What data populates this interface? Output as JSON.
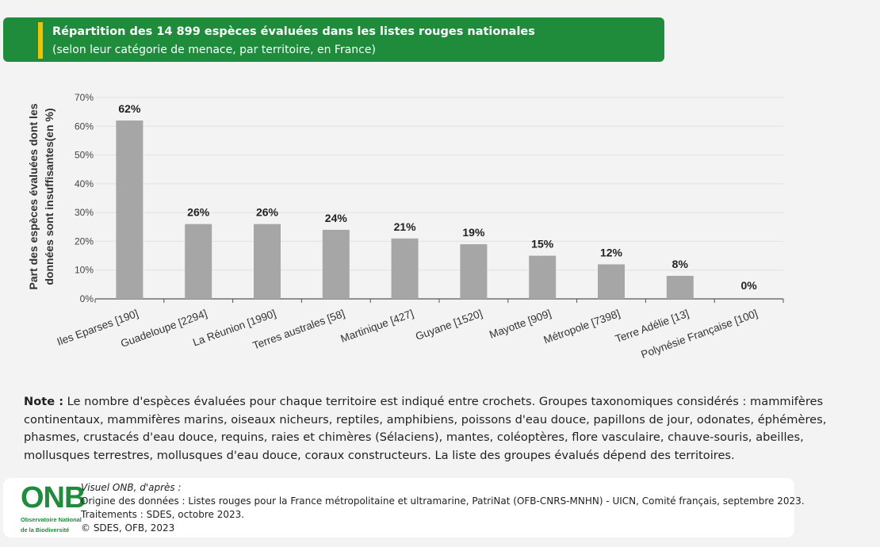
{
  "header": {
    "title": "Répartition des 14 899 espèces évaluées dans les listes rouges nationales",
    "subtitle": "(selon leur catégorie de menace, par territoire, en France)"
  },
  "colors": {
    "header_bg": "#1e8c3a",
    "accent": "#f2c200",
    "bar": "#a6a6a6"
  },
  "chart_data": {
    "type": "bar",
    "categories": [
      "Iles Eparses [190]",
      "Guadeloupe [2294]",
      "La Réunion [1990]",
      "Terres australes [58]",
      "Martinique [427]",
      "Guyane [1520]",
      "Mayotte [909]",
      "Métropole [7398]",
      "Terre Adélie [13]",
      "Polynésie Française [100]"
    ],
    "values": [
      62,
      26,
      26,
      24,
      21,
      19,
      15,
      12,
      8,
      0
    ],
    "data_labels": [
      "62%",
      "26%",
      "26%",
      "24%",
      "21%",
      "19%",
      "15%",
      "12%",
      "8%",
      "0%"
    ],
    "ylabel_line1": "Part des espèces évaluées dont les",
    "ylabel_line2": "données sont insuffisantes(en %)",
    "ylim": [
      0,
      70
    ],
    "yticks": [
      "0%",
      "10%",
      "20%",
      "30%",
      "40%",
      "50%",
      "60%",
      "70%"
    ],
    "grid": true
  },
  "note": {
    "label": "Note :",
    "text": "Le nombre d'espèces évaluées pour chaque territoire est indiqué entre crochets. Groupes taxonomiques considérés : mammifères continentaux, mammifères marins, oiseaux nicheurs, reptiles, amphibiens, poissons d'eau douce, papillons de jour, odonates, éphémères, phasmes, crustacés d'eau douce, requins, raies et chimères (Sélaciens), mantes, coléoptères, flore vasculaire, chauve-souris, abeilles, mollusques terrestres, mollusques d'eau douce, coraux constructeurs. La liste des groupes évalués dépend des territoires."
  },
  "footer": {
    "logo_text": "ONB",
    "logo_sub1": "Observatoire National",
    "logo_sub2": "de la Biodiversité",
    "line1": "Visuel ONB, d'après :",
    "line2": "Origine des données : Listes rouges pour la France métropolitaine et ultramarine, PatriNat (OFB-CNRS-MNHN) - UICN, Comité français, septembre 2023.",
    "line3": "Traitements : SDES, octobre 2023.",
    "line4": "© SDES, OFB, 2023"
  }
}
